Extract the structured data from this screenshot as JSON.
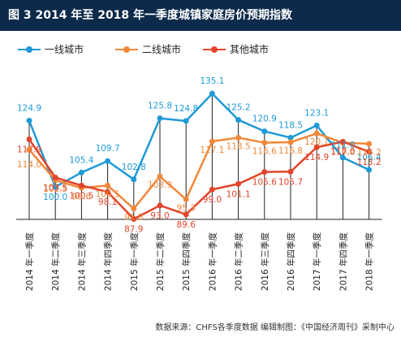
{
  "title": "图 3  2014 年至 2018 年一季度城镇家庭房价预期指数",
  "source": "数据来源：CHFS各季度数据  编辑制图：《中国经济周刊》采制中心",
  "chart_data": {
    "type": "line",
    "title": "图 3  2014 年至 2018 年一季度城镇家庭房价预期指数",
    "xlabel": "",
    "ylabel": "",
    "ylim": [
      80,
      140
    ],
    "grid": false,
    "legend_position": "top-left",
    "categories": [
      "2014 年一季度",
      "2014 年二季度",
      "2014 年三季度",
      "2014 年四季度",
      "2015 年一季度",
      "2015 年二季度",
      "2015 年四季度",
      "2016 年一季度",
      "2016 年二季度",
      "2016 年三季度",
      "2016 年四季度",
      "2017 年一季度",
      "2017 年四季度",
      "2018 年一季度"
    ],
    "series": [
      {
        "name": "一线城市",
        "color": "#1f9ad6",
        "values": [
          124.9,
          100.0,
          105.4,
          109.7,
          102.8,
          125.8,
          124.8,
          135.1,
          125.2,
          120.9,
          118.5,
          123.1,
          111.0,
          106.4
        ]
      },
      {
        "name": "二线城市",
        "color": "#f0883a",
        "values": [
          114.0,
          102.5,
          99.6,
          100.5,
          91.8,
          103.9,
          95.3,
          117.1,
          118.5,
          116.6,
          116.8,
          120.1,
          116.6,
          116.2
        ]
      },
      {
        "name": "其他城市",
        "color": "#e2452b",
        "values": [
          117.9,
          103.5,
          100.5,
          98.1,
          87.9,
          93.0,
          89.6,
          99.0,
          101.1,
          105.6,
          105.7,
          114.9,
          117.0,
          113.2
        ]
      }
    ]
  }
}
